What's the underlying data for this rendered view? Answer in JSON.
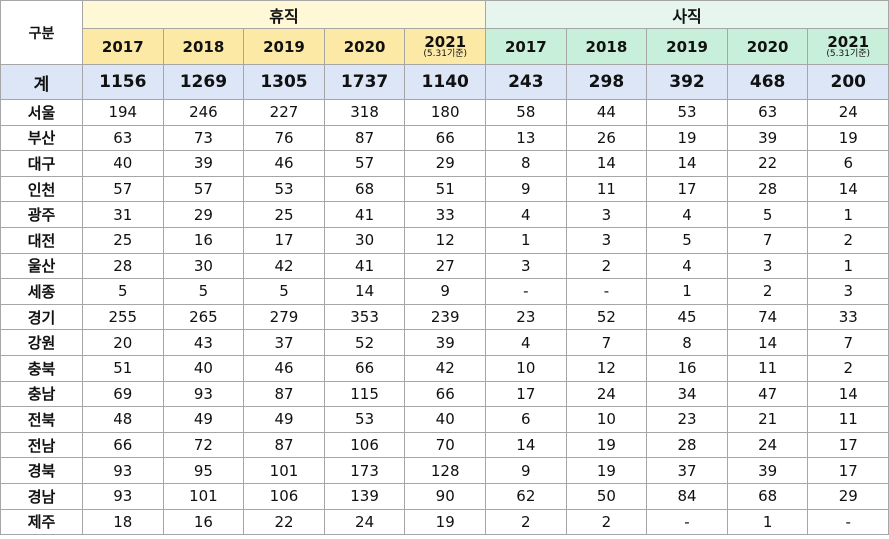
{
  "corner": "구분",
  "groups": [
    {
      "title": "휴직",
      "years": [
        "2017",
        "2018",
        "2019",
        "2020",
        "2021"
      ],
      "note": "(5.31기준)"
    },
    {
      "title": "사직",
      "years": [
        "2017",
        "2018",
        "2019",
        "2020",
        "2021"
      ],
      "note": "(5.31기준)"
    }
  ],
  "total": {
    "label": "계",
    "values": [
      1156,
      1269,
      1305,
      1737,
      1140,
      243,
      298,
      392,
      468,
      200
    ]
  },
  "rows": [
    {
      "label": "서울",
      "values": [
        194,
        246,
        227,
        318,
        180,
        58,
        44,
        53,
        63,
        24
      ]
    },
    {
      "label": "부산",
      "values": [
        63,
        73,
        76,
        87,
        66,
        13,
        26,
        19,
        39,
        19
      ]
    },
    {
      "label": "대구",
      "values": [
        40,
        39,
        46,
        57,
        29,
        8,
        14,
        14,
        22,
        6
      ]
    },
    {
      "label": "인천",
      "values": [
        57,
        57,
        53,
        68,
        51,
        9,
        11,
        17,
        28,
        14
      ]
    },
    {
      "label": "광주",
      "values": [
        31,
        29,
        25,
        41,
        33,
        4,
        3,
        4,
        5,
        1
      ]
    },
    {
      "label": "대전",
      "values": [
        25,
        16,
        17,
        30,
        12,
        1,
        3,
        5,
        7,
        2
      ]
    },
    {
      "label": "울산",
      "values": [
        28,
        30,
        42,
        41,
        27,
        3,
        2,
        4,
        3,
        1
      ]
    },
    {
      "label": "세종",
      "values": [
        5,
        5,
        5,
        14,
        9,
        "-",
        "-",
        1,
        2,
        3
      ]
    },
    {
      "label": "경기",
      "values": [
        255,
        265,
        279,
        353,
        239,
        23,
        52,
        45,
        74,
        33
      ]
    },
    {
      "label": "강원",
      "values": [
        20,
        43,
        37,
        52,
        39,
        4,
        7,
        8,
        14,
        7
      ]
    },
    {
      "label": "충북",
      "values": [
        51,
        40,
        46,
        66,
        42,
        10,
        12,
        16,
        11,
        2
      ]
    },
    {
      "label": "충남",
      "values": [
        69,
        93,
        87,
        115,
        66,
        17,
        24,
        34,
        47,
        14
      ]
    },
    {
      "label": "전북",
      "values": [
        48,
        49,
        49,
        53,
        40,
        6,
        10,
        23,
        21,
        11
      ]
    },
    {
      "label": "전남",
      "values": [
        66,
        72,
        87,
        106,
        70,
        14,
        19,
        28,
        24,
        17
      ]
    },
    {
      "label": "경북",
      "values": [
        93,
        95,
        101,
        173,
        128,
        9,
        19,
        37,
        39,
        17
      ]
    },
    {
      "label": "경남",
      "values": [
        93,
        101,
        106,
        139,
        90,
        62,
        50,
        84,
        68,
        29
      ]
    },
    {
      "label": "제주",
      "values": [
        18,
        16,
        22,
        24,
        19,
        2,
        2,
        "-",
        1,
        "-"
      ]
    }
  ]
}
